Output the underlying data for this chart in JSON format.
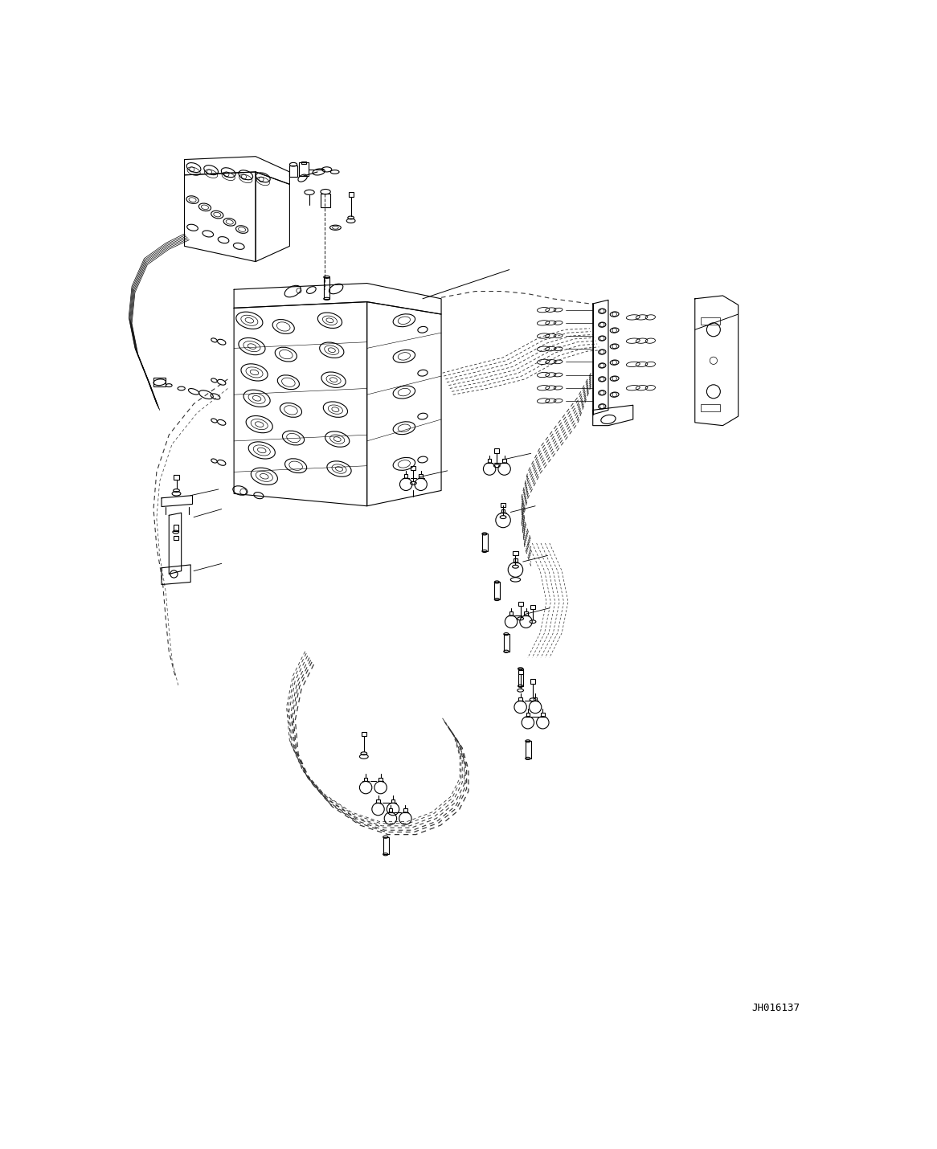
{
  "bg_color": "#ffffff",
  "line_color": "#000000",
  "lw": 0.8,
  "fig_width": 11.66,
  "fig_height": 14.3,
  "dpi": 100,
  "part_number": "JH016137",
  "pipe_dash": [
    5,
    4
  ],
  "pipe_color": "#333333"
}
